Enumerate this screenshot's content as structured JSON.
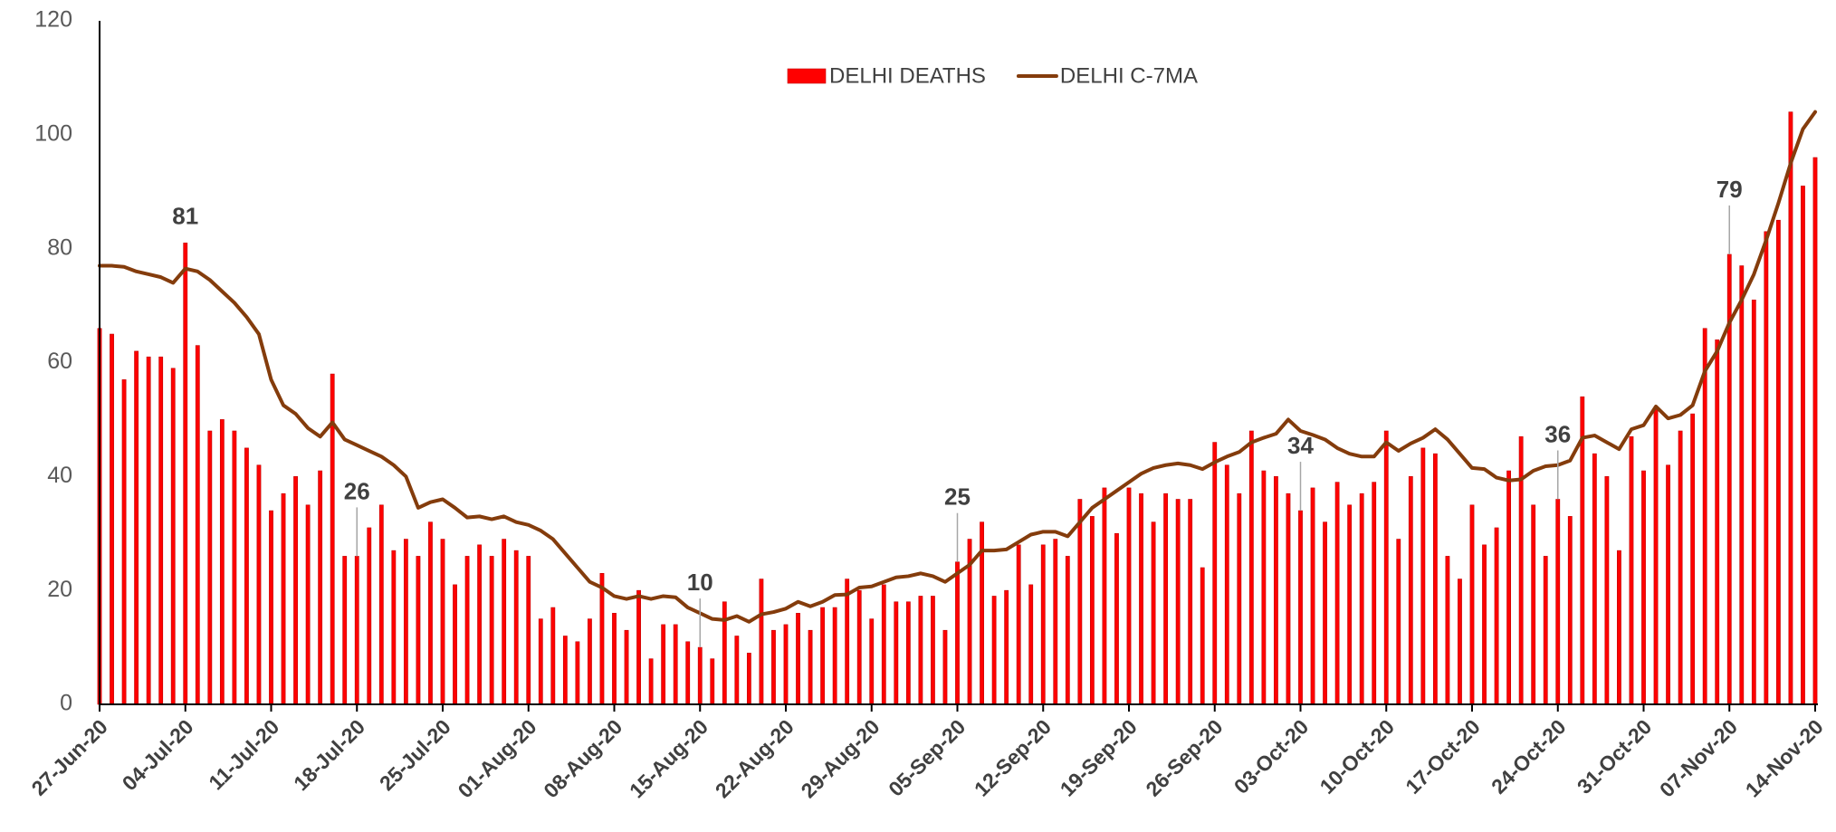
{
  "chart_data": {
    "type": "bar",
    "categories": [
      "27-Jun-20",
      null,
      null,
      null,
      null,
      null,
      null,
      "04-Jul-20",
      null,
      null,
      null,
      null,
      null,
      null,
      "11-Jul-20",
      null,
      null,
      null,
      null,
      null,
      null,
      "18-Jul-20",
      null,
      null,
      null,
      null,
      null,
      null,
      "25-Jul-20",
      null,
      null,
      null,
      null,
      null,
      null,
      "01-Aug-20",
      null,
      null,
      null,
      null,
      null,
      null,
      "08-Aug-20",
      null,
      null,
      null,
      null,
      null,
      null,
      "15-Aug-20",
      null,
      null,
      null,
      null,
      null,
      null,
      "22-Aug-20",
      null,
      null,
      null,
      null,
      null,
      null,
      "29-Aug-20",
      null,
      null,
      null,
      null,
      null,
      null,
      "05-Sep-20",
      null,
      null,
      null,
      null,
      null,
      null,
      "12-Sep-20",
      null,
      null,
      null,
      null,
      null,
      null,
      "19-Sep-20",
      null,
      null,
      null,
      null,
      null,
      null,
      "26-Sep-20",
      null,
      null,
      null,
      null,
      null,
      null,
      "03-Oct-20",
      null,
      null,
      null,
      null,
      null,
      null,
      "10-Oct-20",
      null,
      null,
      null,
      null,
      null,
      null,
      "17-Oct-20",
      null,
      null,
      null,
      null,
      null,
      null,
      "24-Oct-20",
      null,
      null,
      null,
      null,
      null,
      null,
      "31-Oct-20",
      null,
      null,
      null,
      null,
      null,
      null,
      "07-Nov-20",
      null,
      null,
      null,
      null,
      null,
      null,
      "14-Nov-20"
    ],
    "series": [
      {
        "name": "DELHI DEATHS",
        "type": "bar",
        "color": "#ff0000",
        "values": [
          66,
          65,
          57,
          62,
          61,
          61,
          59,
          81,
          63,
          48,
          50,
          48,
          45,
          42,
          34,
          37,
          40,
          35,
          41,
          58,
          26,
          26,
          31,
          35,
          27,
          29,
          26,
          32,
          29,
          21,
          26,
          28,
          26,
          29,
          27,
          26,
          15,
          17,
          12,
          11,
          15,
          23,
          16,
          13,
          20,
          8,
          14,
          14,
          11,
          10,
          8,
          18,
          12,
          9,
          22,
          13,
          14,
          16,
          13,
          17,
          17,
          22,
          20,
          15,
          21,
          18,
          18,
          19,
          19,
          13,
          25,
          29,
          32,
          19,
          20,
          28,
          21,
          28,
          29,
          26,
          36,
          33,
          38,
          30,
          38,
          37,
          32,
          37,
          36,
          36,
          24,
          46,
          42,
          37,
          48,
          41,
          40,
          37,
          34,
          38,
          32,
          39,
          35,
          37,
          39,
          48,
          29,
          40,
          45,
          44,
          26,
          22,
          35,
          28,
          31,
          41,
          47,
          35,
          26,
          36,
          33,
          54,
          44,
          40,
          27,
          47,
          41,
          52,
          42,
          48,
          51,
          66,
          64,
          79,
          77,
          71,
          83,
          85,
          104,
          91,
          96
        ]
      },
      {
        "name": "DELHI C-7MA",
        "type": "line",
        "color": "#843c0c",
        "values": [
          77,
          77,
          76.8,
          76,
          75.5,
          75,
          74,
          76.5,
          76,
          74.5,
          72.5,
          70.5,
          68,
          65,
          57,
          52.5,
          51,
          48.5,
          47,
          49.5,
          46.5,
          45.5,
          44.5,
          43.5,
          42,
          40,
          34.5,
          35.5,
          36,
          34.5,
          32.8,
          33,
          32.5,
          33,
          32,
          31.5,
          30.5,
          29,
          26.5,
          24,
          21.5,
          20.5,
          19,
          18.5,
          19,
          18.5,
          19,
          18.8,
          17,
          16,
          15,
          14.8,
          15.5,
          14.5,
          15.8,
          16.2,
          16.8,
          18,
          17.2,
          18,
          19.2,
          19.3,
          20.5,
          20.7,
          21.5,
          22.3,
          22.5,
          23,
          22.5,
          21.5,
          23,
          24.5,
          27,
          27,
          27.2,
          28.5,
          29.8,
          30.3,
          30.3,
          29.5,
          32,
          34.5,
          36,
          37.5,
          39,
          40.5,
          41.5,
          42,
          42.3,
          42,
          41.3,
          42.5,
          43.5,
          44.3,
          46,
          46.8,
          47.5,
          50,
          48,
          47.3,
          46.5,
          45,
          44,
          43.5,
          43.5,
          46,
          44.5,
          45.8,
          46.8,
          48.3,
          46.5,
          44,
          41.5,
          41.3,
          39.8,
          39.3,
          39.5,
          41,
          41.8,
          42,
          42.8,
          46.8,
          47.2,
          46,
          44.8,
          48.3,
          49,
          52.3,
          50.2,
          50.8,
          52.5,
          58.5,
          62,
          67,
          71,
          75.5,
          81.5,
          88,
          95,
          101,
          104
        ]
      }
    ],
    "annotations": [
      {
        "x": "04-Jul-20",
        "text": "81"
      },
      {
        "x": "18-Jul-20",
        "text": "26"
      },
      {
        "x": "15-Aug-20",
        "text": "10"
      },
      {
        "x": "05-Sep-20",
        "text": "25"
      },
      {
        "x": "03-Oct-20",
        "text": "34"
      },
      {
        "x": "24-Oct-20",
        "text": "36"
      },
      {
        "x": "07-Nov-20",
        "text": "79"
      }
    ],
    "ylim": [
      0,
      120
    ],
    "yticks": [
      0,
      20,
      40,
      60,
      80,
      100,
      120
    ],
    "grid": false,
    "legend": "top"
  }
}
